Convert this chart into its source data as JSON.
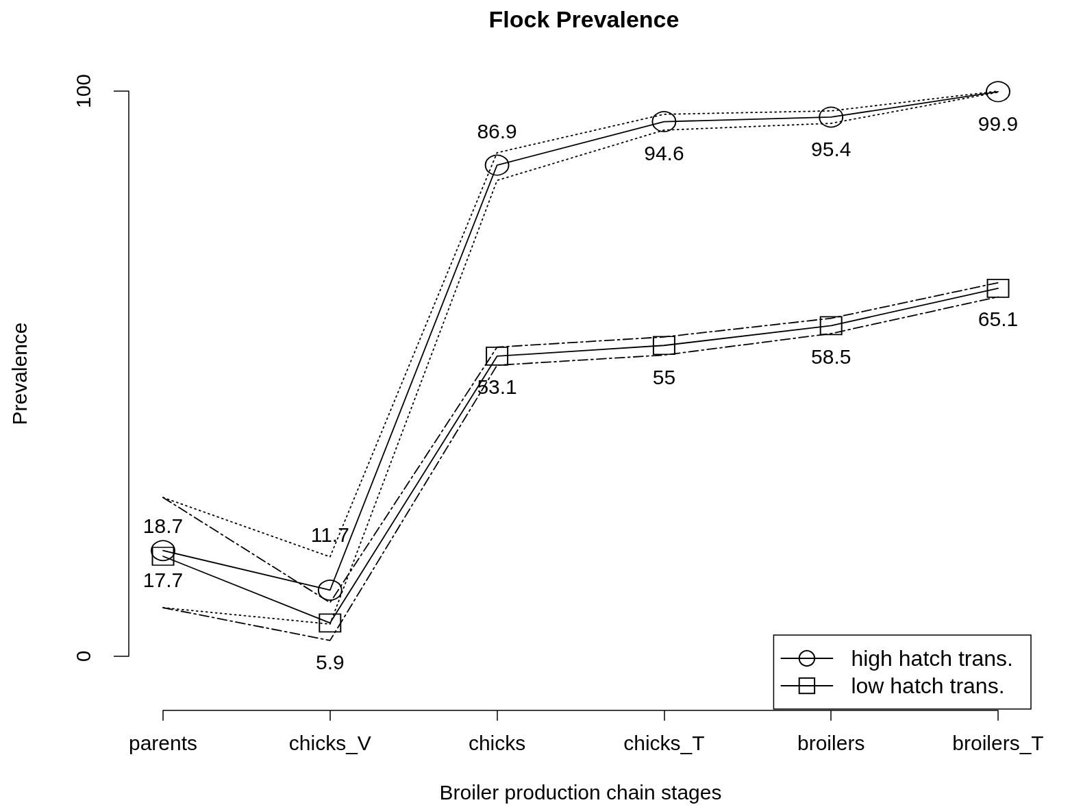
{
  "chart_data": {
    "type": "line",
    "title": "Flock Prevalence",
    "xlabel": "Broiler production chain stages",
    "ylabel": "Prevalence",
    "categories": [
      "parents",
      "chicks_V",
      "chicks",
      "chicks_T",
      "broilers",
      "broilers_T"
    ],
    "series": [
      {
        "name": "high hatch trans.",
        "color": "#000000",
        "marker": "circle",
        "values": [
          18.7,
          11.7,
          86.9,
          94.6,
          95.4,
          99.9
        ],
        "value_labels": [
          "18.7",
          "11.7",
          "86.9",
          "94.6",
          "95.4",
          "99.9"
        ]
      },
      {
        "color": "#000000",
        "marker": "none",
        "line_style": "dotted",
        "values": [
          28.1,
          17.6,
          89.1,
          95.9,
          96.5,
          100
        ]
      },
      {
        "color": "#000000",
        "marker": "none",
        "line_style": "dotted",
        "values": [
          8.6,
          5.7,
          84.2,
          93.1,
          94.3,
          99.8
        ]
      },
      {
        "name": "low hatch trans.",
        "color": "#000000",
        "marker": "square",
        "values": [
          17.7,
          5.9,
          53.1,
          55,
          58.5,
          65.1
        ],
        "value_labels": [
          "17.7",
          "5.9",
          "53.1",
          "55",
          "58.5",
          "65.1"
        ]
      },
      {
        "color": "#000000",
        "marker": "none",
        "line_style": "dashed",
        "values": [
          28.1,
          9.5,
          54.7,
          56.5,
          59.8,
          66.1
        ]
      },
      {
        "color": "#000000",
        "marker": "none",
        "line_style": "dashed",
        "values": [
          8.6,
          2.8,
          51.5,
          53.3,
          57.1,
          63.6
        ]
      }
    ],
    "ylim": [
      0,
      100
    ],
    "yticks": [
      0,
      100
    ],
    "legend": "bottom right",
    "line_style": "solid"
  }
}
